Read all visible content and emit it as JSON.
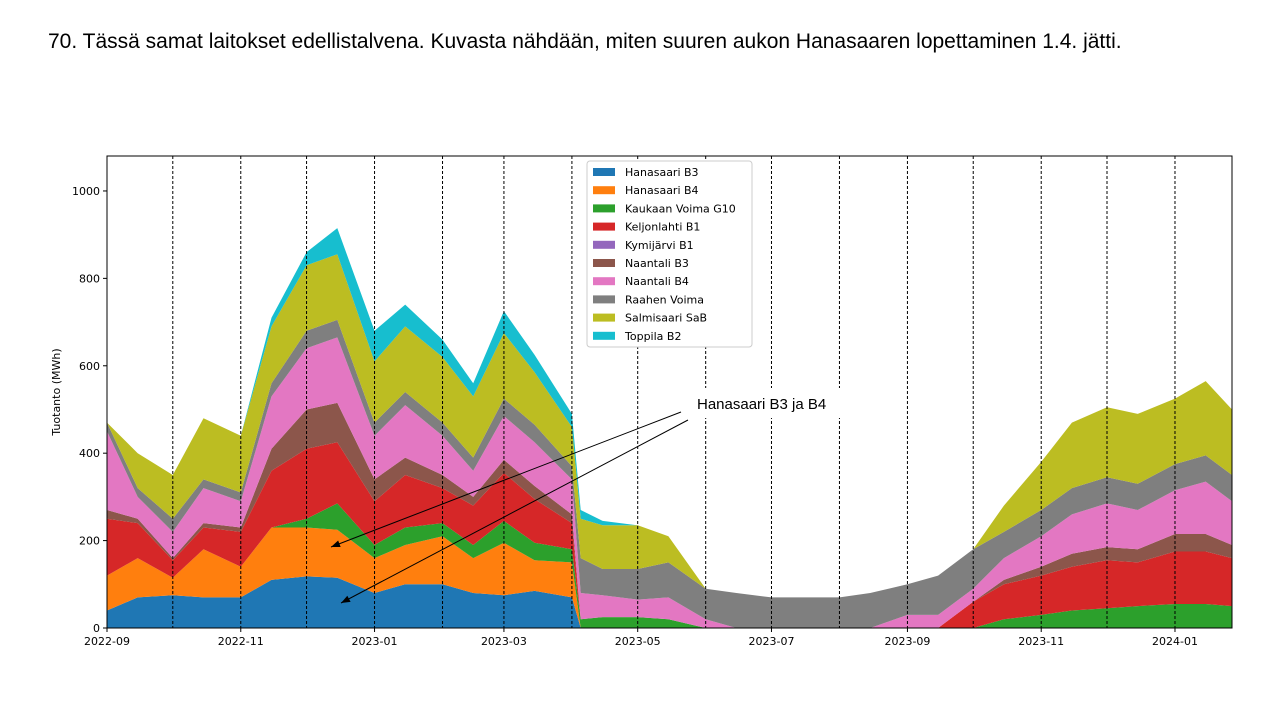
{
  "slide": {
    "title": "70. Tässä samat laitokset edellistalvena. Kuvasta nähdään, miten suuren aukon Hanasaaren lopettaminen 1.4. jätti."
  },
  "annotation": {
    "text": "Hanasaari B3 ja B4"
  },
  "chart_data": {
    "type": "area",
    "stacked": true,
    "ylabel": "Tuotanto (MWh)",
    "xlabel": "",
    "xlim": [
      "2022-09-01",
      "2024-01-27"
    ],
    "ylim": [
      0,
      1080
    ],
    "x_ticks": [
      "2022-09",
      "2022-11",
      "2023-01",
      "2023-03",
      "2023-05",
      "2023-07",
      "2023-09",
      "2023-11",
      "2024-01"
    ],
    "y_ticks": [
      0,
      200,
      400,
      600,
      800,
      1000
    ],
    "month_boundaries_dashed": [
      "2022-10-01",
      "2022-11-01",
      "2022-12-01",
      "2023-01-01",
      "2023-02-01",
      "2023-03-01",
      "2023-04-01",
      "2023-05-01",
      "2023-06-01",
      "2023-07-01",
      "2023-08-01",
      "2023-09-01",
      "2023-10-01",
      "2023-11-01",
      "2023-12-01",
      "2024-01-01"
    ],
    "grid": false,
    "legend_position": "top-center",
    "x": [
      "2022-09-01",
      "2022-09-15",
      "2022-10-01",
      "2022-10-15",
      "2022-11-01",
      "2022-11-15",
      "2022-12-01",
      "2022-12-15",
      "2023-01-01",
      "2023-01-15",
      "2023-02-01",
      "2023-02-15",
      "2023-03-01",
      "2023-03-15",
      "2023-04-01",
      "2023-04-05",
      "2023-04-15",
      "2023-05-01",
      "2023-05-15",
      "2023-06-01",
      "2023-06-15",
      "2023-07-01",
      "2023-07-15",
      "2023-08-01",
      "2023-08-15",
      "2023-09-01",
      "2023-09-15",
      "2023-10-01",
      "2023-10-15",
      "2023-11-01",
      "2023-11-15",
      "2023-12-01",
      "2023-12-15",
      "2024-01-01",
      "2024-01-15",
      "2024-01-27"
    ],
    "series": [
      {
        "name": "Hanasaari B3",
        "color": "#1f77b4",
        "values": [
          40,
          70,
          75,
          70,
          70,
          110,
          118,
          115,
          80,
          100,
          100,
          80,
          75,
          85,
          70,
          0,
          0,
          0,
          0,
          0,
          0,
          0,
          0,
          0,
          0,
          0,
          0,
          0,
          0,
          0,
          0,
          0,
          0,
          0,
          0,
          0
        ]
      },
      {
        "name": "Hanasaari B4",
        "color": "#ff7f0e",
        "values": [
          80,
          90,
          40,
          110,
          70,
          120,
          112,
          110,
          80,
          90,
          110,
          80,
          120,
          70,
          80,
          0,
          0,
          0,
          0,
          0,
          0,
          0,
          0,
          0,
          0,
          0,
          0,
          0,
          0,
          0,
          0,
          0,
          0,
          0,
          0,
          0
        ]
      },
      {
        "name": "Kaukaan Voima G10",
        "color": "#2ca02c",
        "values": [
          0,
          0,
          0,
          0,
          0,
          0,
          20,
          60,
          30,
          40,
          30,
          30,
          50,
          40,
          30,
          20,
          25,
          25,
          20,
          0,
          0,
          0,
          0,
          0,
          0,
          0,
          0,
          0,
          20,
          30,
          40,
          45,
          50,
          55,
          55,
          50
        ]
      },
      {
        "name": "Keljonlahti B1",
        "color": "#d62728",
        "values": [
          130,
          80,
          40,
          50,
          80,
          130,
          160,
          140,
          100,
          120,
          80,
          90,
          110,
          100,
          60,
          0,
          0,
          0,
          0,
          0,
          0,
          0,
          0,
          0,
          0,
          0,
          0,
          60,
          80,
          90,
          100,
          110,
          100,
          120,
          120,
          110
        ]
      },
      {
        "name": "Kymijärvi B1",
        "color": "#9467bd",
        "values": [
          0,
          0,
          0,
          0,
          0,
          0,
          0,
          0,
          0,
          0,
          0,
          0,
          0,
          0,
          0,
          0,
          0,
          0,
          0,
          0,
          0,
          0,
          0,
          0,
          0,
          0,
          0,
          0,
          0,
          0,
          0,
          0,
          0,
          0,
          0,
          0
        ]
      },
      {
        "name": "Naantali B3",
        "color": "#8c564b",
        "values": [
          20,
          10,
          5,
          10,
          10,
          50,
          90,
          90,
          50,
          40,
          30,
          20,
          30,
          30,
          20,
          0,
          0,
          0,
          0,
          0,
          0,
          0,
          0,
          0,
          0,
          0,
          0,
          0,
          10,
          20,
          30,
          30,
          30,
          40,
          40,
          30
        ]
      },
      {
        "name": "Naantali B4",
        "color": "#e377c2",
        "values": [
          180,
          50,
          60,
          80,
          60,
          120,
          140,
          150,
          100,
          120,
          90,
          60,
          100,
          100,
          80,
          60,
          50,
          40,
          50,
          20,
          0,
          0,
          0,
          0,
          0,
          30,
          30,
          30,
          50,
          70,
          90,
          100,
          90,
          100,
          120,
          100
        ]
      },
      {
        "name": "Raahen Voima",
        "color": "#7f7f7f",
        "values": [
          20,
          20,
          30,
          20,
          20,
          30,
          40,
          40,
          30,
          30,
          30,
          30,
          40,
          40,
          30,
          80,
          60,
          70,
          80,
          70,
          80,
          70,
          70,
          70,
          80,
          70,
          90,
          90,
          60,
          60,
          60,
          60,
          60,
          60,
          60,
          60
        ]
      },
      {
        "name": "Salmisaari SaB",
        "color": "#bcbd22",
        "values": [
          0,
          80,
          100,
          140,
          130,
          130,
          150,
          150,
          140,
          150,
          150,
          140,
          150,
          120,
          90,
          90,
          100,
          100,
          60,
          0,
          0,
          0,
          0,
          0,
          0,
          0,
          0,
          0,
          60,
          110,
          150,
          160,
          160,
          150,
          170,
          150
        ]
      },
      {
        "name": "Toppila B2",
        "color": "#17becf",
        "values": [
          0,
          0,
          0,
          0,
          0,
          20,
          30,
          60,
          70,
          50,
          40,
          30,
          50,
          40,
          30,
          20,
          10,
          0,
          0,
          0,
          0,
          0,
          0,
          0,
          0,
          0,
          0,
          0,
          0,
          0,
          0,
          0,
          0,
          0,
          0,
          0
        ]
      }
    ]
  }
}
